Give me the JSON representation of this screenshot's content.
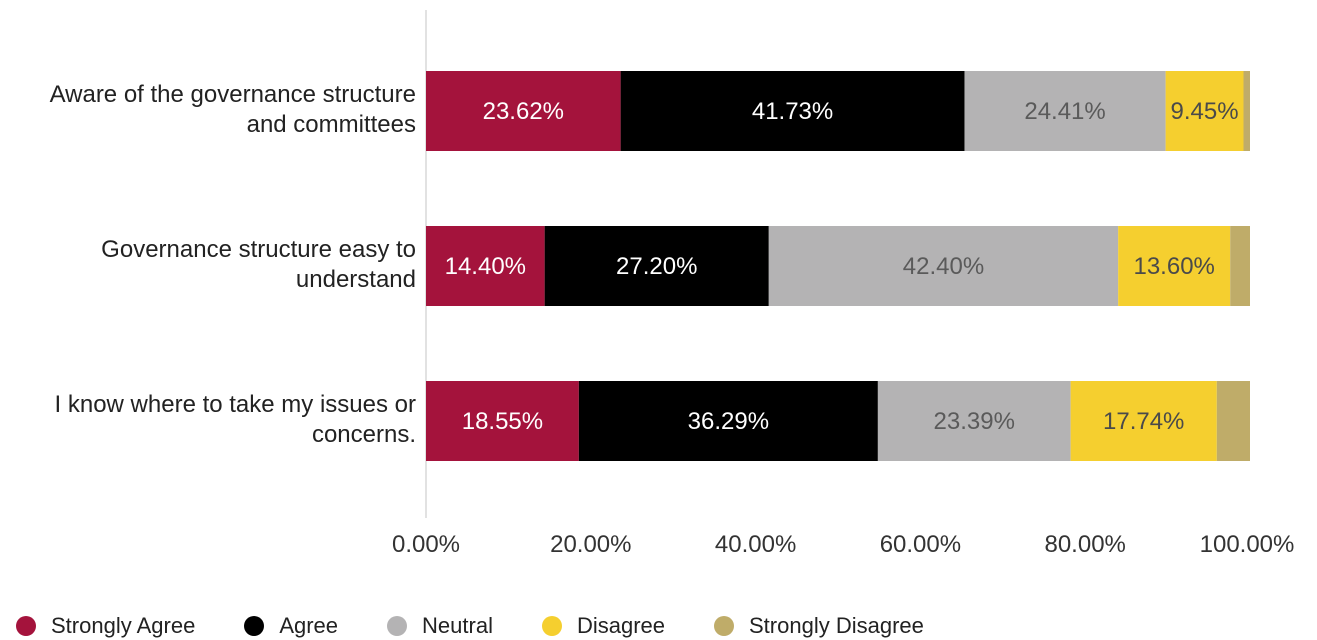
{
  "chart_data": {
    "type": "bar",
    "orientation": "horizontal",
    "stacked": true,
    "categories": [
      [
        "Aware of the governance structure",
        "and committees"
      ],
      [
        "Governance structure easy to",
        "understand"
      ],
      [
        "I know where to take my issues or",
        "concerns."
      ]
    ],
    "series": [
      {
        "name": "Strongly Agree",
        "color": "#a4133c",
        "label_color": "#ffffff",
        "values": [
          23.62,
          14.4,
          18.55
        ],
        "labels": [
          "23.62%",
          "14.40%",
          "18.55%"
        ]
      },
      {
        "name": "Agree",
        "color": "#000000",
        "label_color": "#ffffff",
        "values": [
          41.73,
          27.2,
          36.29
        ],
        "labels": [
          "41.73%",
          "27.20%",
          "36.29%"
        ]
      },
      {
        "name": "Neutral",
        "color": "#b4b3b4",
        "label_color": "#5a5a5a",
        "values": [
          24.41,
          42.4,
          23.39
        ],
        "labels": [
          "24.41%",
          "42.40%",
          "23.39%"
        ]
      },
      {
        "name": "Disagree",
        "color": "#f5cf2f",
        "label_color": "#4a4a4a",
        "values": [
          9.45,
          13.6,
          17.74
        ],
        "labels": [
          "9.45%",
          "13.60%",
          "17.74%"
        ]
      },
      {
        "name": "Strongly Disagree",
        "color": "#bfac69",
        "label_color": "#4a4a4a",
        "values": [
          0.79,
          2.4,
          4.03
        ],
        "labels": [
          "",
          "",
          ""
        ]
      }
    ],
    "xlim": [
      0,
      100
    ],
    "ticks": [
      "0.00%",
      "20.00%",
      "40.00%",
      "60.00%",
      "80.00%",
      "100.00%"
    ],
    "grid": false,
    "legend": "bottom"
  }
}
